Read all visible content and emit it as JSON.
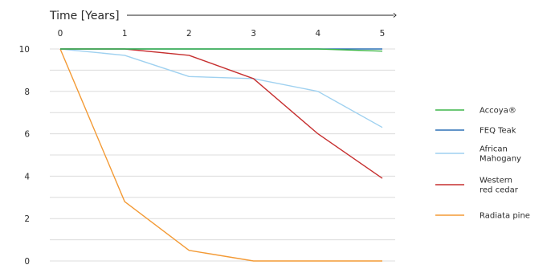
{
  "chart_data": {
    "type": "line",
    "title": "",
    "x_axis_title": "Time [Years]",
    "x_axis_position": "top",
    "x": [
      0,
      1,
      2,
      3,
      4,
      5
    ],
    "x_tick_labels": [
      "0",
      "1",
      "2",
      "3",
      "4",
      "5"
    ],
    "y_ticks": [
      0,
      2,
      4,
      6,
      8,
      10
    ],
    "y_tick_labels": [
      "0",
      "2",
      "4",
      "6",
      "8",
      "10"
    ],
    "ylim": [
      0,
      10
    ],
    "xlim": [
      0,
      5
    ],
    "grid": true,
    "legend_position": "right",
    "series": [
      {
        "name": "Accoya®",
        "label_lines": [
          "Accoya®"
        ],
        "color": "#3db54a",
        "values": [
          10,
          10,
          10,
          10,
          10,
          9.9
        ]
      },
      {
        "name": "FEQ Teak",
        "label_lines": [
          "FEQ Teak"
        ],
        "color": "#2d71b5",
        "values": [
          10,
          10,
          10,
          10,
          10,
          10
        ]
      },
      {
        "name": "African Mahogany",
        "label_lines": [
          "African",
          "Mahogany"
        ],
        "color": "#9fd1f0",
        "values": [
          10,
          9.7,
          8.7,
          8.6,
          8.0,
          6.3
        ]
      },
      {
        "name": "Western red cedar",
        "label_lines": [
          "Western",
          "red cedar"
        ],
        "color": "#c62f2f",
        "values": [
          10,
          10,
          9.7,
          8.6,
          6.0,
          3.9
        ]
      },
      {
        "name": "Radiata pine",
        "label_lines": [
          "Radiata pine"
        ],
        "color": "#f39a35",
        "values": [
          10,
          2.8,
          0.5,
          0,
          0,
          0
        ]
      }
    ]
  }
}
